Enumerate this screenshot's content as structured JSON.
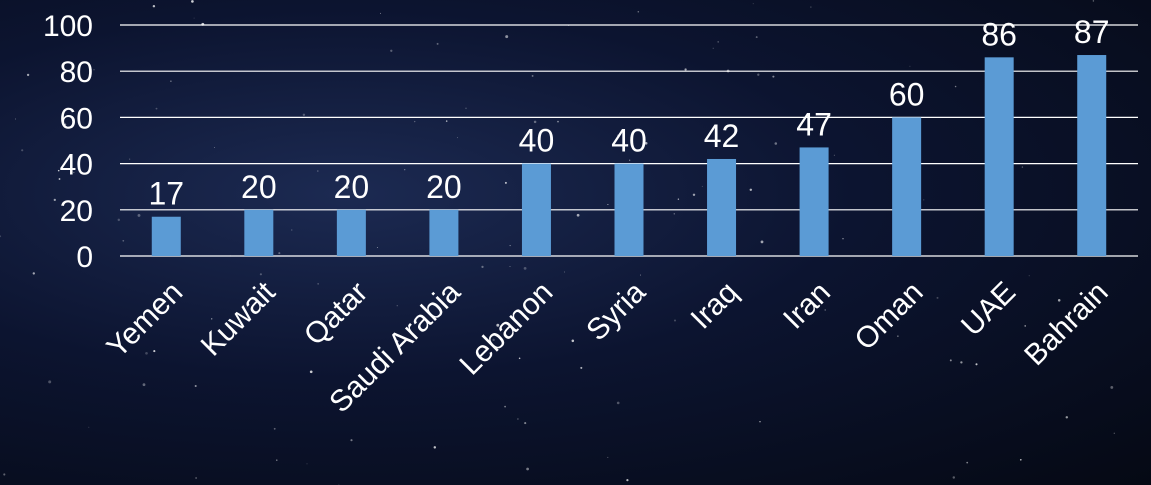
{
  "chart_data": {
    "type": "bar",
    "categories": [
      "Yemen",
      "Kuwait",
      "Qatar",
      "Saudi Arabia",
      "Lebanon",
      "Syria",
      "Iraq",
      "Iran",
      "Oman",
      "UAE",
      "Bahrain"
    ],
    "values": [
      17,
      20,
      20,
      20,
      40,
      40,
      42,
      47,
      60,
      86,
      87
    ],
    "yticks": [
      "0",
      "20",
      "40",
      "60",
      "80",
      "100"
    ],
    "ylim": [
      0,
      100
    ],
    "grid": true,
    "bar_color": "#5b9bd5",
    "text_color": "#ffffff",
    "background_color": "#0a1230"
  }
}
